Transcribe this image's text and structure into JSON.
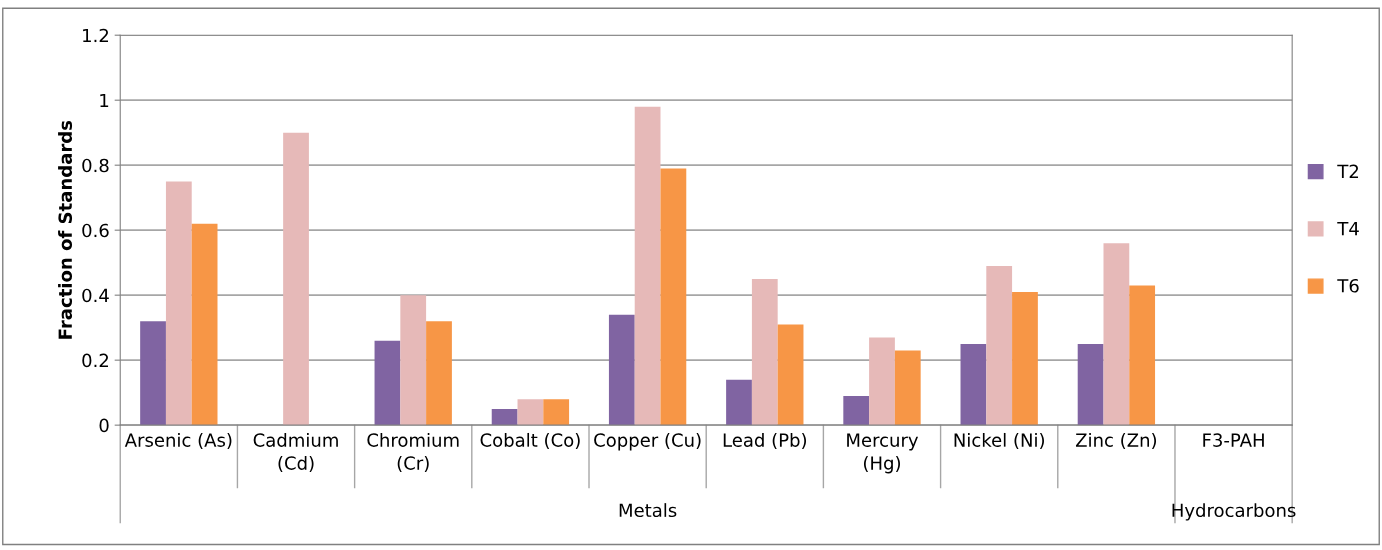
{
  "chart_data": {
    "type": "bar",
    "ylabel": "Fraction of Standards",
    "categories": [
      "Arsenic (As)",
      "Cadmium\n(Cd)",
      "Chromium\n(Cr)",
      "Cobalt (Co)",
      "Copper (Cu)",
      "Lead (Pb)",
      "Mercury\n(Hg)",
      "Nickel (Ni)",
      "Zinc (Zn)",
      "F3-PAH"
    ],
    "series": [
      {
        "name": "T2",
        "color": "#8064a2",
        "values": [
          0.32,
          null,
          0.26,
          0.05,
          0.34,
          0.14,
          0.09,
          0.25,
          0.25,
          null
        ]
      },
      {
        "name": "T4",
        "color": "#e6b9b8",
        "values": [
          0.75,
          0.9,
          0.4,
          0.08,
          0.98,
          0.45,
          0.27,
          0.49,
          0.56,
          null
        ]
      },
      {
        "name": "T6",
        "color": "#f79646",
        "values": [
          0.62,
          null,
          0.32,
          0.08,
          0.79,
          0.31,
          0.23,
          0.41,
          0.43,
          null
        ]
      }
    ],
    "ylim": [
      0,
      1.2
    ],
    "yticks": [
      0,
      0.2,
      0.4,
      0.6,
      0.8,
      1,
      1.2
    ],
    "grid": "y",
    "legend": "right",
    "annotations": [
      "Metals",
      "Hydrocarbons"
    ]
  }
}
